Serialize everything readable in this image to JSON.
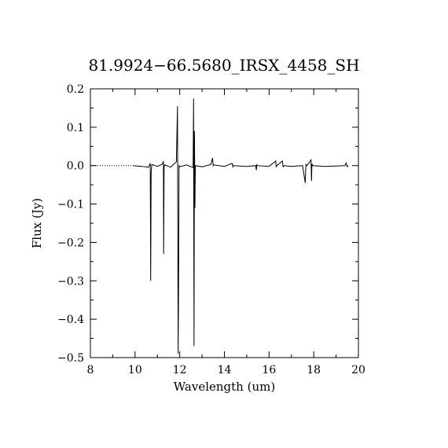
{
  "chart_data": {
    "type": "line",
    "title": "81.9924−66.5680_IRSX_4458_SH",
    "xlabel": "Wavelength (um)",
    "ylabel": "Flux (Jy)",
    "xlim": [
      8,
      20
    ],
    "ylim": [
      -0.5,
      0.2
    ],
    "xticks": [
      8,
      10,
      12,
      14,
      16,
      18,
      20
    ],
    "xtick_labels": [
      "8",
      "10",
      "12",
      "14",
      "16",
      "18",
      "20"
    ],
    "yticks": [
      -0.5,
      -0.4,
      -0.3,
      -0.2,
      -0.1,
      0.0,
      0.1,
      0.2
    ],
    "ytick_labels": [
      "−0.5",
      "−0.4",
      "−0.3",
      "−0.2",
      "−0.1",
      "0.0",
      "0.1",
      "0.2"
    ],
    "grid": false,
    "legend": "none",
    "zero_line": {
      "x": [
        8,
        9.9
      ],
      "y": 0.0,
      "style": "dotted"
    },
    "series": [
      {
        "x": [
          9.9,
          10.3,
          10.6,
          10.68,
          10.7,
          10.72,
          10.75,
          11.0,
          11.2,
          11.27,
          11.28,
          11.3,
          11.32,
          11.6,
          11.85,
          11.9,
          11.92,
          11.93,
          11.95,
          11.97,
          12.0,
          12.3,
          12.6,
          12.62,
          12.64,
          12.66,
          12.68,
          12.7,
          13.0,
          13.4,
          13.47,
          13.5,
          13.52,
          14.0,
          14.35,
          14.38,
          14.4,
          15.0,
          15.4,
          15.43,
          15.45,
          15.47,
          16.0,
          16.3,
          16.32,
          16.35,
          16.6,
          16.63,
          16.65,
          17.0,
          17.5,
          17.62,
          17.65,
          17.7,
          17.88,
          17.9,
          17.92,
          17.95,
          18.5,
          19.4,
          19.45,
          19.5,
          19.55
        ],
        "y": [
          0.0,
          -0.002,
          -0.004,
          0.006,
          -0.3,
          -0.02,
          0.003,
          -0.002,
          0.003,
          0.01,
          -0.23,
          -0.005,
          0.002,
          -0.004,
          0.01,
          0.155,
          -0.29,
          -0.49,
          -0.295,
          0.0,
          -0.003,
          0.002,
          -0.005,
          0.175,
          -0.47,
          0.09,
          -0.11,
          0.0,
          -0.003,
          0.003,
          0.02,
          0.0,
          0.002,
          -0.002,
          0.006,
          -0.003,
          0.0,
          -0.002,
          0.0,
          -0.012,
          0.004,
          0.0,
          -0.002,
          0.012,
          -0.004,
          0.0,
          0.012,
          -0.004,
          0.0,
          -0.002,
          0.0,
          -0.045,
          0.003,
          0.0,
          0.015,
          -0.04,
          0.005,
          0.0,
          -0.002,
          0.0,
          0.007,
          -0.003,
          0.0
        ]
      }
    ]
  }
}
